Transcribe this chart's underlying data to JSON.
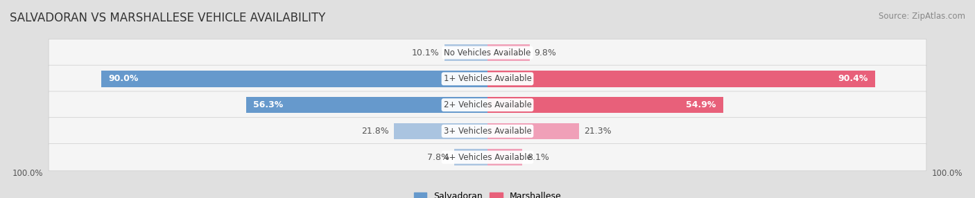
{
  "title": "SALVADORAN VS MARSHALLESE VEHICLE AVAILABILITY",
  "source": "Source: ZipAtlas.com",
  "categories": [
    "No Vehicles Available",
    "1+ Vehicles Available",
    "2+ Vehicles Available",
    "3+ Vehicles Available",
    "4+ Vehicles Available"
  ],
  "salvadoran_values": [
    10.1,
    90.0,
    56.3,
    21.8,
    7.8
  ],
  "marshallese_values": [
    9.8,
    90.4,
    54.9,
    21.3,
    8.1
  ],
  "salvadoran_color_dark": "#6699cc",
  "salvadoran_color_light": "#aac4e0",
  "marshallese_color_dark": "#e8607a",
  "marshallese_color_light": "#f0a0b8",
  "bar_height": 0.62,
  "background_color": "#e0e0e0",
  "row_bg_color": "#f5f5f5",
  "max_value": 100.0,
  "label_fontsize": 9,
  "title_fontsize": 12,
  "source_fontsize": 8.5,
  "scale": 0.88
}
